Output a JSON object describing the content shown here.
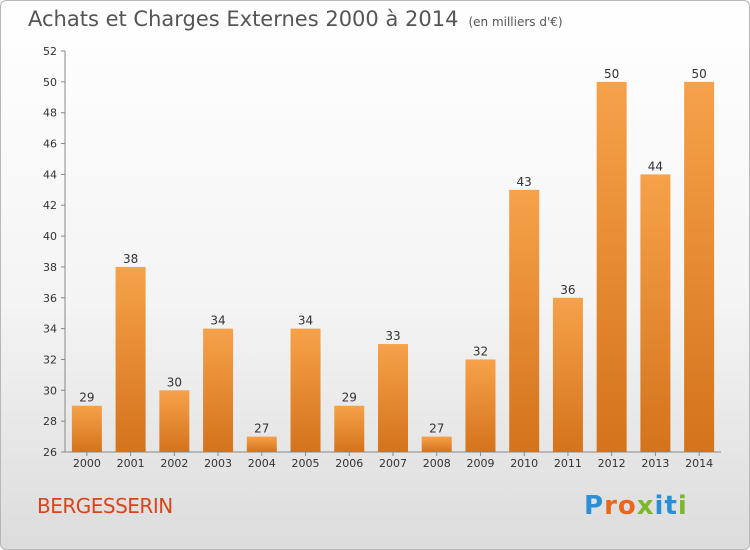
{
  "header": {
    "title": "Achats et Charges Externes 2000 à 2014",
    "subtitle": "(en milliers d'€)"
  },
  "footer": {
    "commune": "BERGESSERIN",
    "logo": "Proxiti"
  },
  "colors": {
    "bar_light": "#f6a24a",
    "bar_dark": "#d4731c",
    "commune": "#d9451b",
    "logo_letters": [
      "#2a8fd6",
      "#e8671f",
      "#e8671f",
      "#7cb82f",
      "#2a8fd6",
      "#2a8fd6",
      "#7cb82f"
    ]
  },
  "chart_data": {
    "type": "bar",
    "title": "Achats et Charges Externes 2000 à 2014",
    "subtitle": "(en milliers d'€)",
    "categories": [
      "2000",
      "2001",
      "2002",
      "2003",
      "2004",
      "2005",
      "2006",
      "2007",
      "2008",
      "2009",
      "2010",
      "2011",
      "2012",
      "2013",
      "2014"
    ],
    "values": [
      29,
      38,
      30,
      34,
      27,
      34,
      29,
      33,
      27,
      32,
      43,
      36,
      50,
      44,
      50
    ],
    "ylim": [
      26,
      52
    ],
    "yticks": [
      26,
      28,
      30,
      32,
      34,
      36,
      38,
      40,
      42,
      44,
      46,
      48,
      50,
      52
    ],
    "grid": false,
    "legend": "none"
  }
}
